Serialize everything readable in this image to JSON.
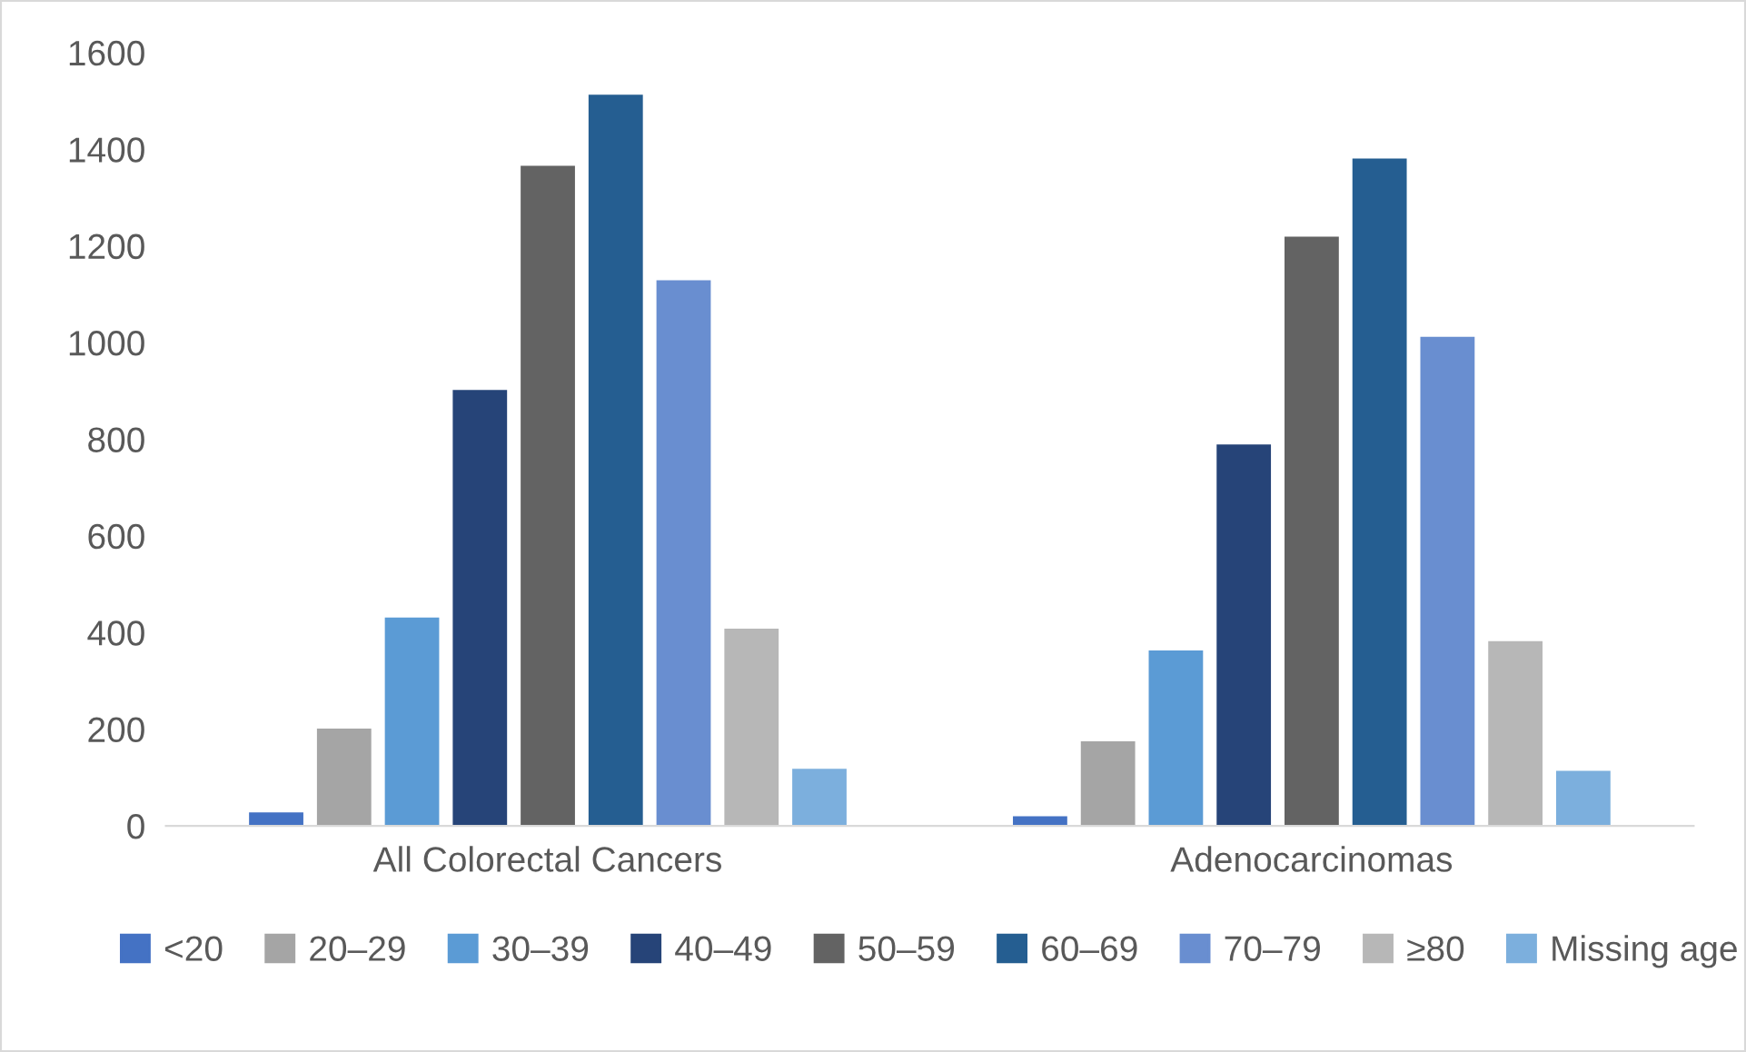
{
  "chart_data": {
    "type": "bar",
    "categories": [
      "All Colorectal Cancers",
      "Adenocarcinomas"
    ],
    "series": [
      {
        "name": "<20",
        "color": "#4472c4",
        "values": [
          28,
          20
        ]
      },
      {
        "name": "20–29",
        "color": "#a5a5a5",
        "values": [
          201,
          175
        ]
      },
      {
        "name": "30–39",
        "color": "#5b9bd5",
        "values": [
          431,
          363
        ]
      },
      {
        "name": "40–49",
        "color": "#264478",
        "values": [
          902,
          789
        ]
      },
      {
        "name": "50–59",
        "color": "#636363",
        "values": [
          1366,
          1219
        ]
      },
      {
        "name": "60–69",
        "color": "#255e91",
        "values": [
          1513,
          1381
        ]
      },
      {
        "name": "70–79",
        "color": "#698ed0",
        "values": [
          1129,
          1012
        ]
      },
      {
        "name": "≥80",
        "color": "#b7b7b7",
        "values": [
          408,
          382
        ]
      },
      {
        "name": "Missing age",
        "color": "#7cafdd",
        "values": [
          118,
          114
        ]
      }
    ],
    "ylim": [
      0,
      1600
    ],
    "yticks": [
      0,
      200,
      400,
      600,
      800,
      1000,
      1200,
      1400,
      1600
    ],
    "grid": false,
    "legend": "bottom"
  }
}
